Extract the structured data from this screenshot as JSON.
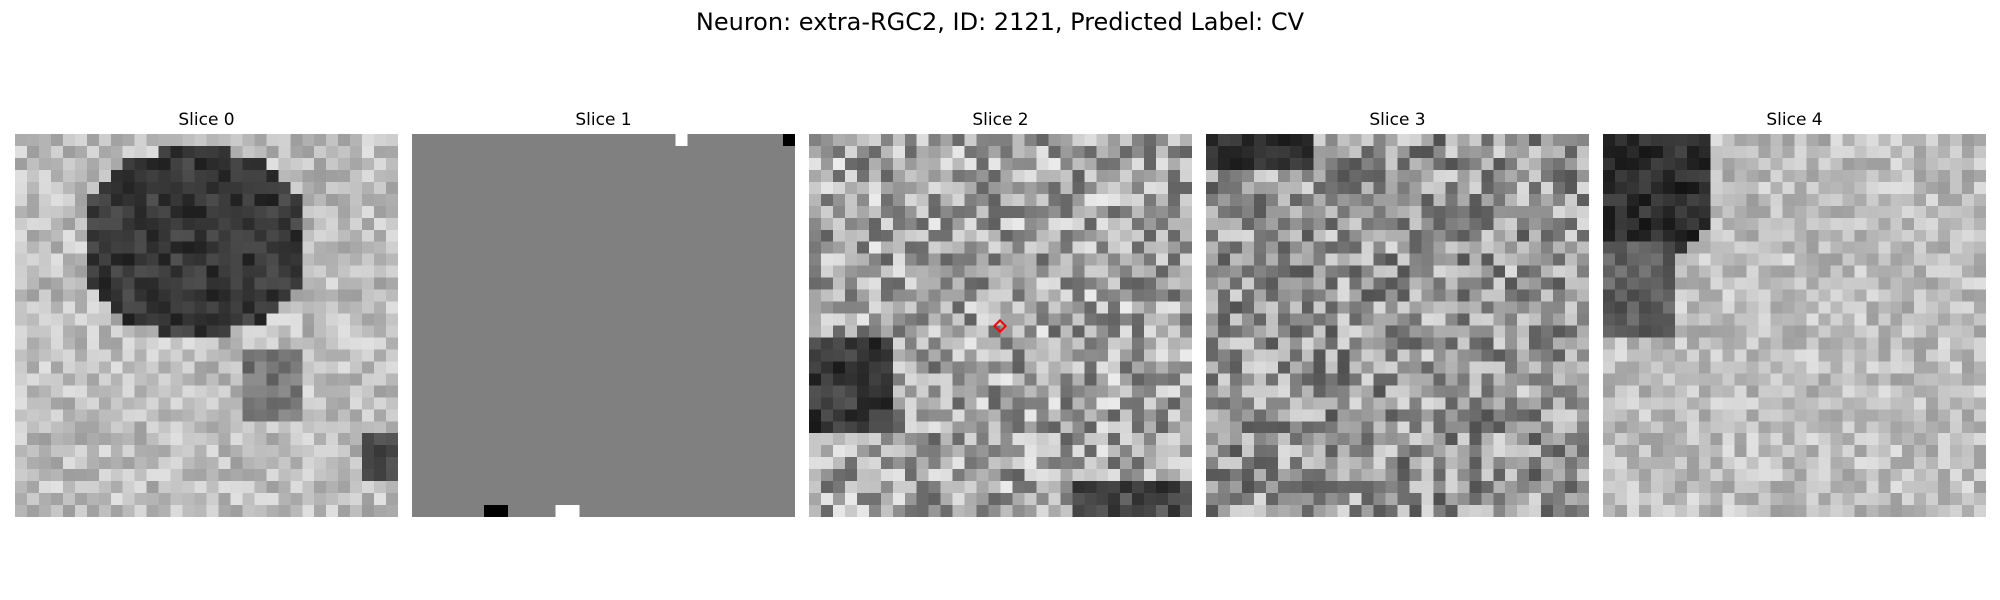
{
  "figure": {
    "title": "Neuron: extra-RGC2, ID: 2121, Predicted Label: CV"
  },
  "panels": [
    {
      "label": "Slice 0",
      "kind": "blob_top",
      "seed": 11
    },
    {
      "label": "Slice 1",
      "kind": "flat_gray",
      "seed": 7
    },
    {
      "label": "Slice 2",
      "kind": "noise_dark_left",
      "seed": 23,
      "marker": "red-diamond-center"
    },
    {
      "label": "Slice 3",
      "kind": "noise_mid",
      "seed": 41
    },
    {
      "label": "Slice 4",
      "kind": "blob_topleft",
      "seed": 59
    }
  ],
  "colors": {
    "marker": "#ff0000",
    "flat": "#808080"
  }
}
